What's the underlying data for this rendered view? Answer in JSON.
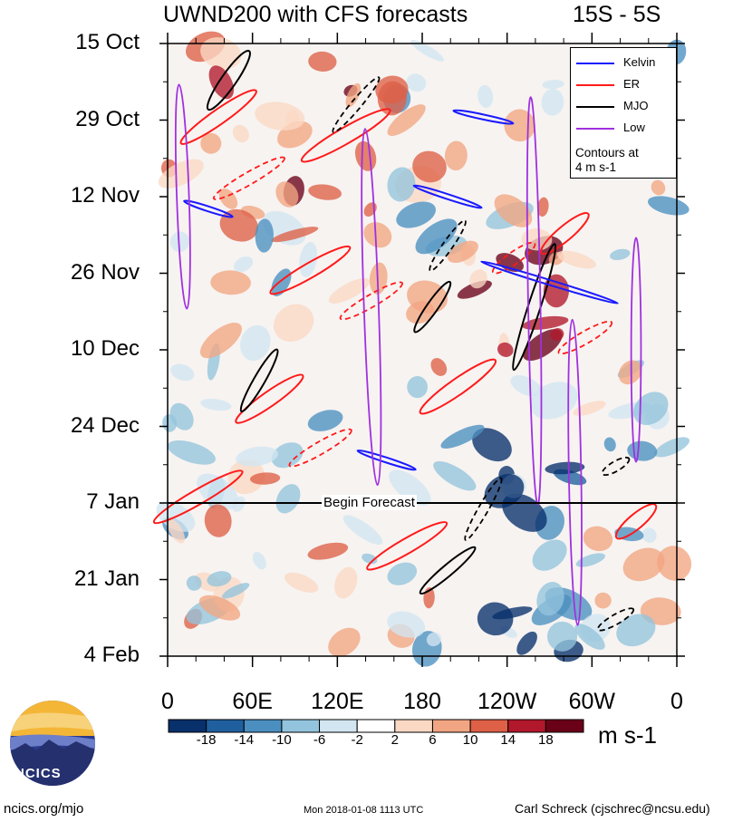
{
  "chart_data": {
    "type": "heatmap",
    "title": "UWND200 with CFS forecasts",
    "subtitle": "15S - 5S",
    "x_axis": {
      "ticks": [
        "0",
        "60E",
        "120E",
        "180",
        "120W",
        "60W",
        "0"
      ],
      "range_deg_east": [
        0,
        360
      ]
    },
    "y_axis": {
      "ticks": [
        "15 Oct",
        "29 Oct",
        "12 Nov",
        "26 Nov",
        "10 Dec",
        "24 Dec",
        "7 Jan",
        "21 Jan",
        "4 Feb"
      ],
      "range": [
        "15 Oct",
        "4 Feb"
      ],
      "direction": "time increases downward"
    },
    "colorbar": {
      "levels": [
        "-18",
        "-14",
        "-10",
        "-6",
        "-2",
        "2",
        "6",
        "10",
        "14",
        "18"
      ],
      "colors": [
        "#08306b",
        "#1f5f9e",
        "#4b8fc0",
        "#93c4dd",
        "#d2e6f1",
        "#ffffff",
        "#fbd8c4",
        "#f2a582",
        "#de6047",
        "#b2182b",
        "#6b0019"
      ],
      "units": "m s-1"
    },
    "legend": {
      "items": [
        {
          "name": "Kelvin",
          "color": "#1a1aff"
        },
        {
          "name": "ER",
          "color": "#ff1a1a"
        },
        {
          "name": "MJO",
          "color": "#000000"
        },
        {
          "name": "Low",
          "color": "#a030e0"
        }
      ],
      "note_line1": "Contours at",
      "note_line2": "4 m s-1",
      "position": "top-right"
    },
    "annotations": {
      "forecast_start": "Begin Forecast",
      "forecast_date": "7 Jan"
    }
  },
  "footer": {
    "left": "ncics.org/mjo",
    "center": "Mon 2018-01-08 1113 UTC",
    "right": "Carl Schreck (cjschrec@ncsu.edu)"
  },
  "logo": {
    "text": "NCICS"
  }
}
